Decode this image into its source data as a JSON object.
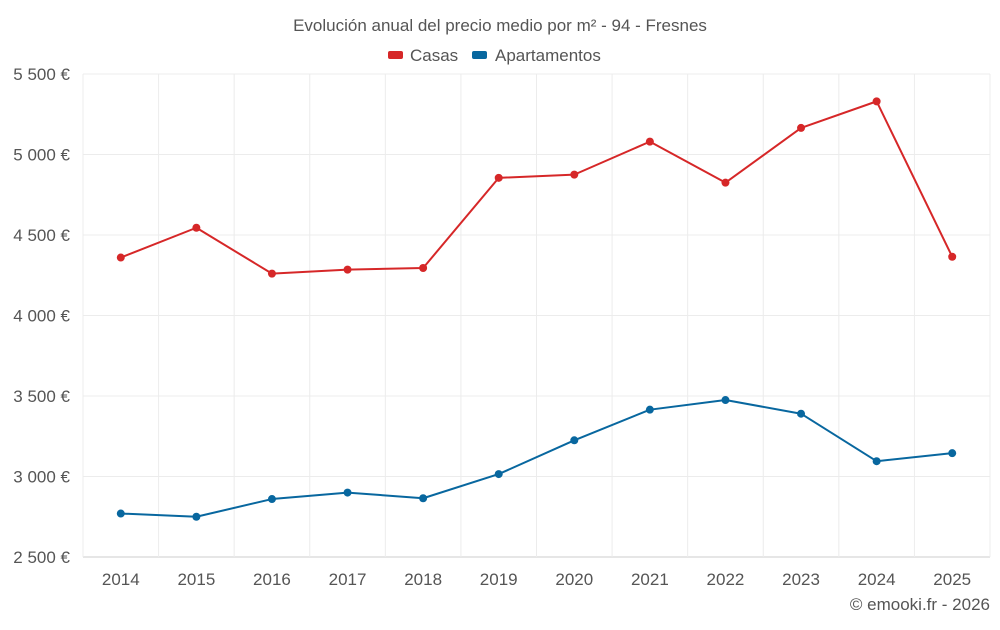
{
  "chart_data": {
    "type": "line",
    "title": "Evolución anual del precio medio por m² - 94 - Fresnes",
    "categories": [
      "2014",
      "2015",
      "2016",
      "2017",
      "2018",
      "2019",
      "2020",
      "2021",
      "2022",
      "2023",
      "2024",
      "2025"
    ],
    "series": [
      {
        "name": "Casas",
        "color": "#d62728",
        "values": [
          4360,
          4545,
          4260,
          4285,
          4295,
          4855,
          4875,
          5080,
          4825,
          5165,
          5330,
          4365
        ]
      },
      {
        "name": "Apartamentos",
        "color": "#08679f",
        "values": [
          2770,
          2750,
          2860,
          2900,
          2865,
          3015,
          3225,
          3415,
          3475,
          3390,
          3095,
          3145
        ]
      }
    ],
    "ylim": [
      2500,
      5500
    ],
    "yticks": [
      2500,
      3000,
      3500,
      4000,
      4500,
      5000,
      5500
    ],
    "ytick_labels": [
      "2 500 €",
      "3 000 €",
      "3 500 €",
      "4 000 €",
      "4 500 €",
      "5 000 €",
      "5 500 €"
    ],
    "grid": true,
    "legend": "top-center",
    "credit": "© emooki.fr - 2026"
  }
}
